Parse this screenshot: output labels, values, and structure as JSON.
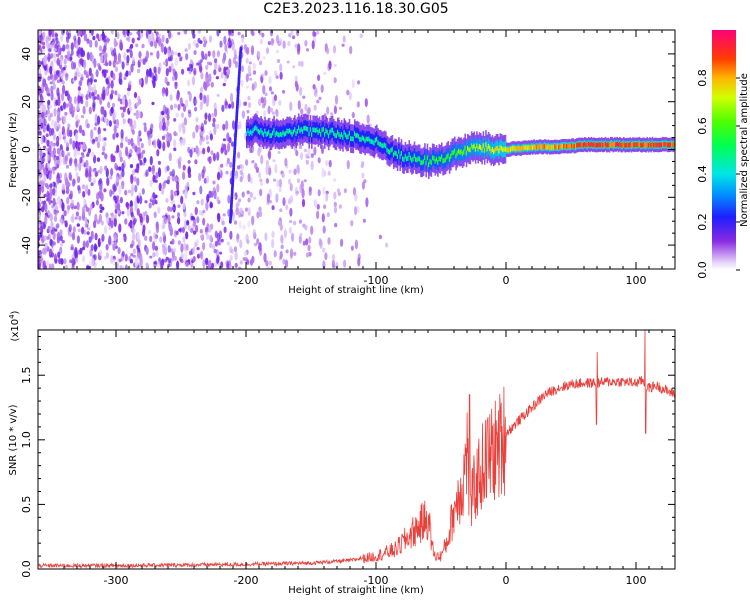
{
  "title": "C2E3.2023.116.18.30.G05",
  "chart_data": [
    {
      "type": "heatmap",
      "xlabel": "Height of straight line (km)",
      "ylabel": "Frequency (Hz)",
      "xlim": [
        -360,
        130
      ],
      "ylim": [
        -50,
        50
      ],
      "xticks": [
        -300,
        -200,
        -100,
        0,
        100
      ],
      "yticks": [
        -40,
        -20,
        0,
        20,
        40
      ],
      "colorbar": {
        "label": "Normalized spectral amplitude",
        "range": [
          0.0,
          1.0
        ],
        "ticks": [
          0.0,
          0.2,
          0.4,
          0.6,
          0.8
        ]
      },
      "ridge": {
        "x": [
          -200,
          -180,
          -160,
          -140,
          -120,
          -100,
          -90,
          -80,
          -70,
          -60,
          -50,
          -40,
          -30,
          -20,
          -10,
          0,
          20,
          40,
          60,
          80,
          100,
          130
        ],
        "y": [
          8,
          7,
          8,
          7,
          6,
          3,
          0,
          -3,
          -4,
          -5,
          -4,
          -2,
          0,
          1,
          0,
          0,
          1,
          1,
          2,
          2,
          2,
          2
        ],
        "amplitude": [
          0.45,
          0.5,
          0.5,
          0.5,
          0.5,
          0.5,
          0.5,
          0.5,
          0.55,
          0.6,
          0.6,
          0.65,
          0.7,
          0.75,
          0.8,
          0.85,
          0.85,
          0.9,
          0.95,
          0.95,
          0.95,
          0.95
        ]
      }
    },
    {
      "type": "line",
      "xlabel": "Height of straight line (km)",
      "ylabel": "SNR (10 * v/v)",
      "yscale_label": "(x10",
      "yscale_exp": "4",
      "yscale_close": ")",
      "xlim": [
        -360,
        130
      ],
      "ylim": [
        0,
        1.85
      ],
      "xticks": [
        -300,
        -200,
        -100,
        0,
        100
      ],
      "yticks": [
        0.0,
        0.5,
        1.0,
        1.5
      ],
      "ytick_labels": [
        "0.0",
        "0.5",
        "1.0",
        "1.5"
      ],
      "color": "#e8413c",
      "series": [
        {
          "x": [
            -360,
            -300,
            -200,
            -150,
            -120,
            -100,
            -85,
            -75,
            -70,
            -65,
            -60,
            -57,
            -55,
            -50,
            -45,
            -40,
            -36,
            -33,
            -30,
            -28,
            -25,
            -20,
            -15,
            -10,
            -5,
            0,
            5,
            10,
            15,
            20,
            25,
            30,
            40,
            50,
            60,
            70,
            80,
            90,
            100,
            105,
            108,
            110,
            115,
            120,
            125,
            130
          ],
          "y": [
            0.02,
            0.02,
            0.03,
            0.04,
            0.06,
            0.1,
            0.15,
            0.25,
            0.3,
            0.35,
            0.4,
            0.2,
            0.1,
            0.1,
            0.22,
            0.45,
            0.6,
            0.65,
            0.95,
            0.4,
            0.6,
            0.75,
            0.85,
            0.9,
            0.95,
            1.05,
            1.1,
            1.15,
            1.2,
            1.25,
            1.3,
            1.35,
            1.4,
            1.43,
            1.44,
            1.44,
            1.45,
            1.45,
            1.44,
            1.46,
            1.42,
            1.4,
            1.42,
            1.4,
            1.37,
            1.36
          ]
        }
      ]
    }
  ]
}
